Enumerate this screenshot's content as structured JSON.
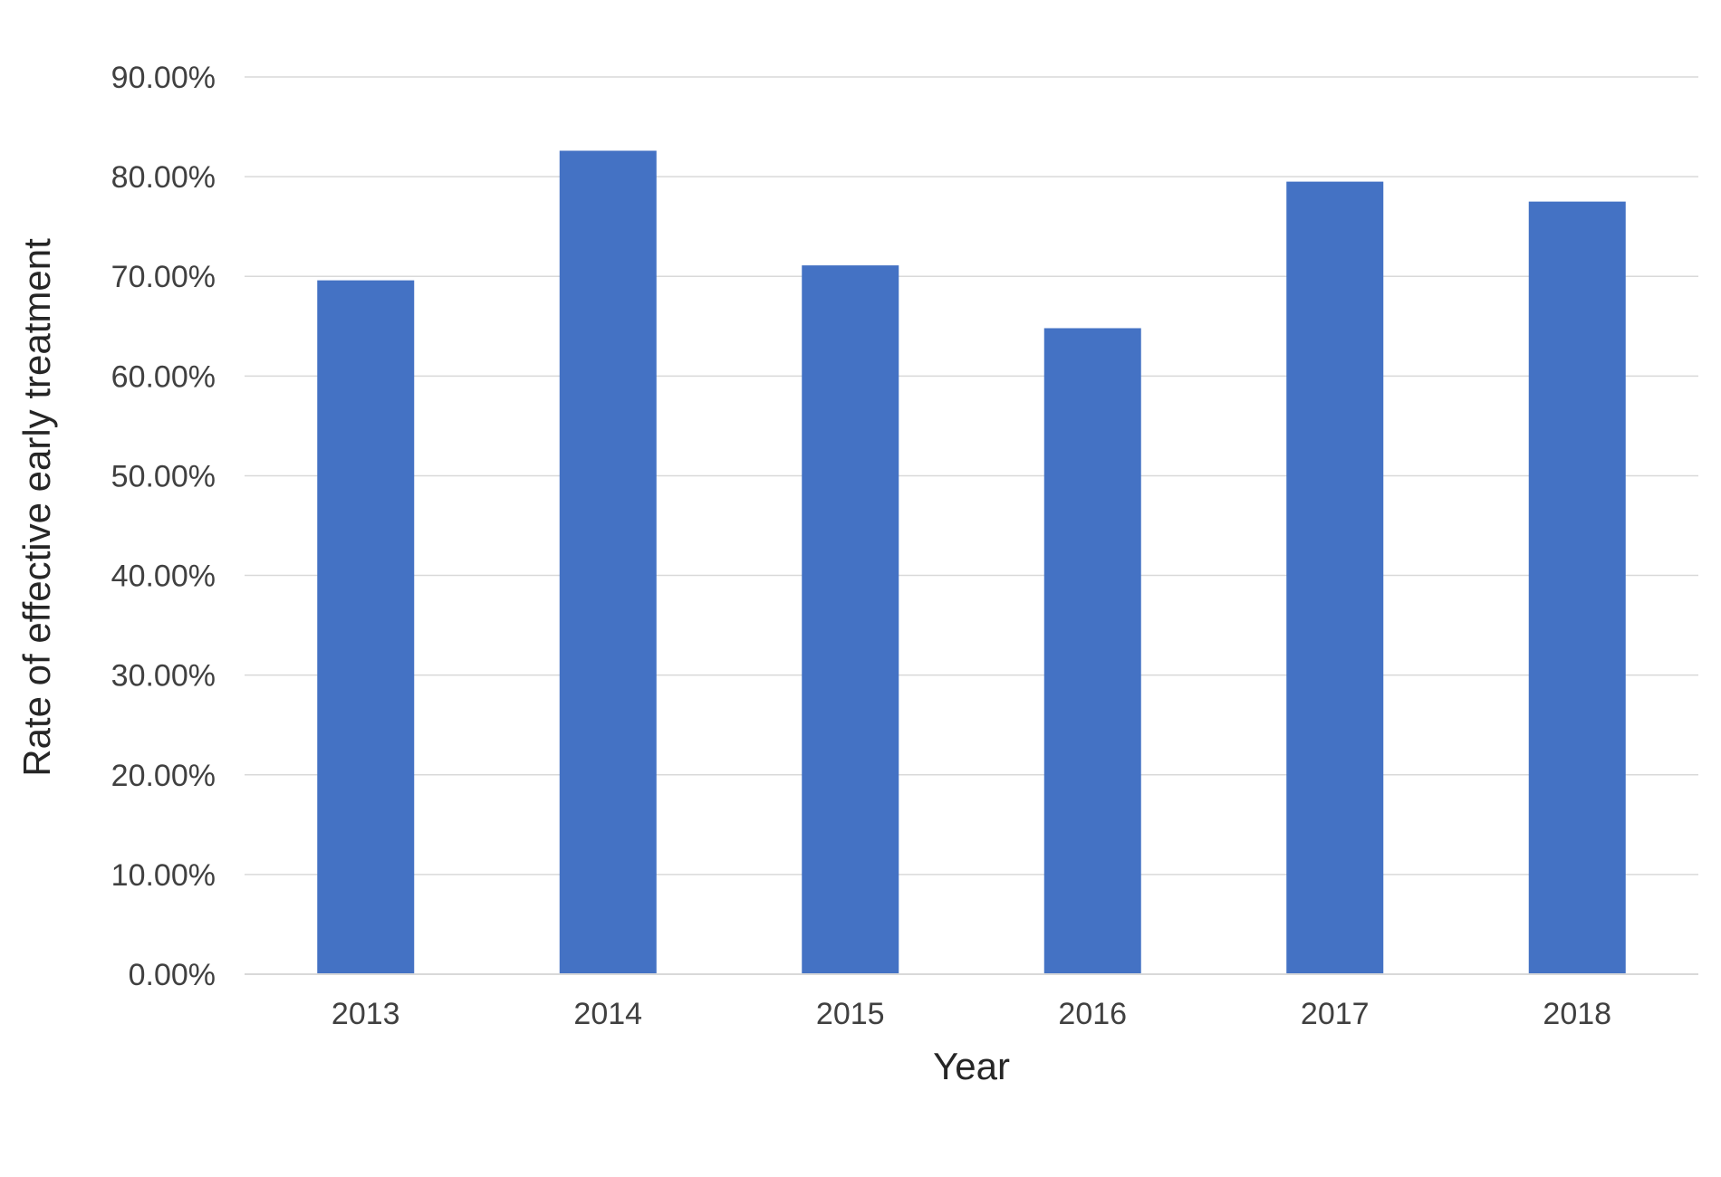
{
  "chart_data": {
    "type": "bar",
    "title": "",
    "xlabel": "Year",
    "ylabel": "Rate of effective early treatment",
    "categories": [
      "2013",
      "2014",
      "2015",
      "2016",
      "2017",
      "2018"
    ],
    "values": [
      69.6,
      82.6,
      71.1,
      64.8,
      79.5,
      77.5
    ],
    "ylim": [
      0,
      90
    ],
    "yticks": [
      0,
      10,
      20,
      30,
      40,
      50,
      60,
      70,
      80,
      90
    ],
    "ytick_labels": [
      "0.00%",
      "10.00%",
      "20.00%",
      "30.00%",
      "40.00%",
      "50.00%",
      "60.00%",
      "70.00%",
      "80.00%",
      "90.00%"
    ],
    "grid": true,
    "legend": "none",
    "colors": {
      "bar": "#4472C4",
      "grid": "#d9d9d9",
      "axis": "#d9d9d9"
    }
  }
}
